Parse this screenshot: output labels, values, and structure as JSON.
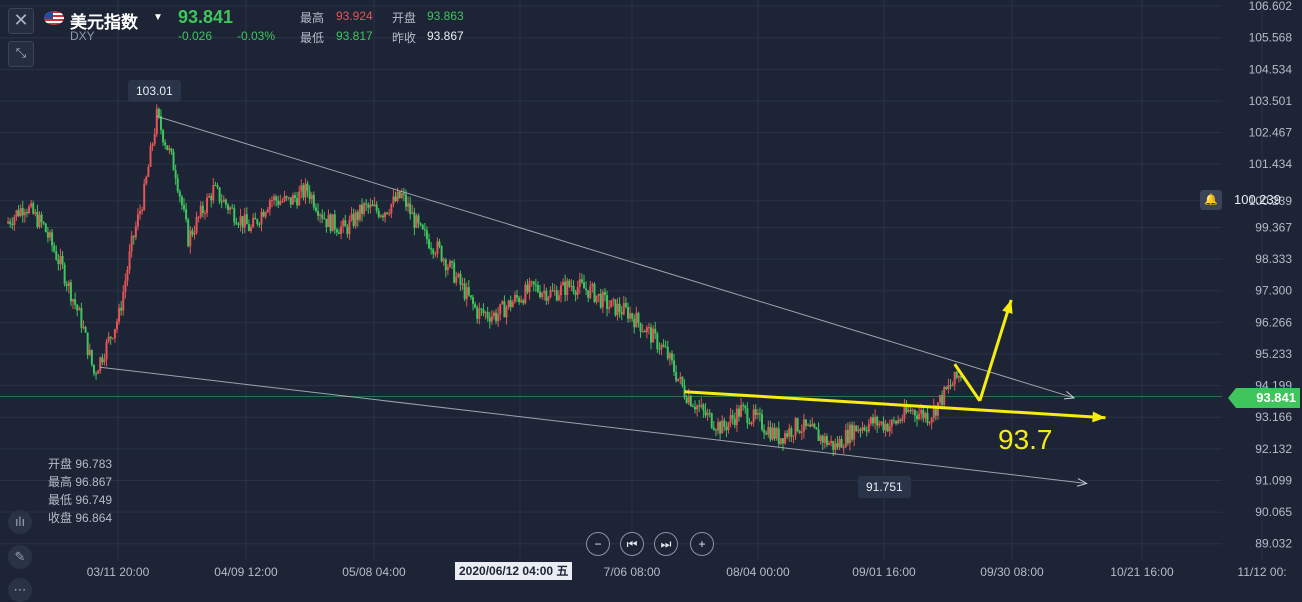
{
  "header": {
    "symbol_name": "美元指数",
    "symbol_code": "DXY",
    "last_price": "93.841",
    "change": "-0.026",
    "change_pct": "-0.03%",
    "high_label": "最高",
    "high": "93.924",
    "open_label": "开盘",
    "open": "93.863",
    "low_label": "最低",
    "low": "93.817",
    "prev_close_label": "昨收",
    "prev_close": "93.867"
  },
  "ohlc_box": {
    "open": "开盘 96.783",
    "high": "最高 96.867",
    "low": "最低 96.749",
    "close": "收盘 96.864"
  },
  "price_tag": "93.841",
  "alert_value": "100.239",
  "callouts": {
    "peak": "103.01",
    "trough": "91.751"
  },
  "annotation": "93.7",
  "crosshair_date": "2020/06/12 04:00 五",
  "colors": {
    "bg": "#1c2435",
    "up": "#e45656",
    "down": "#3ec55c",
    "trend": "#f6ec12",
    "channel": "#c8ccd4"
  },
  "chart_data": {
    "type": "candlestick",
    "symbol": "DXY",
    "y_ticks": [
      "106.602",
      "105.568",
      "104.534",
      "103.501",
      "102.467",
      "101.434",
      "100.239",
      "99.367",
      "98.333",
      "97.300",
      "96.266",
      "95.233",
      "94.199",
      "93.166",
      "92.132",
      "91.099",
      "90.065",
      "89.032"
    ],
    "x_ticks": [
      "03/11 20:00",
      "04/09 12:00",
      "05/08 04:00",
      "06/12 04:00",
      "7/06 08:00",
      "08/04 00:00",
      "09/01 16:00",
      "09/30 08:00",
      "10/21 16:00",
      "11/12 00:"
    ],
    "ylim": [
      88.5,
      106.8
    ],
    "close_path": [
      {
        "x": 0,
        "y": 99.5
      },
      {
        "x": 3,
        "y": 100.1
      },
      {
        "x": 6,
        "y": 99.4
      },
      {
        "x": 9,
        "y": 98.0
      },
      {
        "x": 12,
        "y": 96.3
      },
      {
        "x": 14,
        "y": 94.6
      },
      {
        "x": 16,
        "y": 95.5
      },
      {
        "x": 18,
        "y": 96.5
      },
      {
        "x": 20,
        "y": 98.8
      },
      {
        "x": 22,
        "y": 100.5
      },
      {
        "x": 24,
        "y": 103.0
      },
      {
        "x": 27,
        "y": 101.2
      },
      {
        "x": 29,
        "y": 99.0
      },
      {
        "x": 31,
        "y": 99.8
      },
      {
        "x": 33,
        "y": 100.6
      },
      {
        "x": 36,
        "y": 99.9
      },
      {
        "x": 39,
        "y": 99.3
      },
      {
        "x": 42,
        "y": 100.3
      },
      {
        "x": 45,
        "y": 100.2
      },
      {
        "x": 48,
        "y": 100.6
      },
      {
        "x": 51,
        "y": 99.6
      },
      {
        "x": 54,
        "y": 99.3
      },
      {
        "x": 57,
        "y": 100.0
      },
      {
        "x": 60,
        "y": 99.9
      },
      {
        "x": 63,
        "y": 100.4
      },
      {
        "x": 66,
        "y": 99.2
      },
      {
        "x": 69,
        "y": 98.6
      },
      {
        "x": 72,
        "y": 97.6
      },
      {
        "x": 75,
        "y": 96.6
      },
      {
        "x": 78,
        "y": 96.5
      },
      {
        "x": 81,
        "y": 97.0
      },
      {
        "x": 84,
        "y": 97.4
      },
      {
        "x": 87,
        "y": 97.2
      },
      {
        "x": 90,
        "y": 97.5
      },
      {
        "x": 93,
        "y": 97.3
      },
      {
        "x": 96,
        "y": 96.8
      },
      {
        "x": 99,
        "y": 96.6
      },
      {
        "x": 102,
        "y": 96.0
      },
      {
        "x": 105,
        "y": 95.3
      },
      {
        "x": 108,
        "y": 94.0
      },
      {
        "x": 111,
        "y": 93.3
      },
      {
        "x": 114,
        "y": 92.8
      },
      {
        "x": 117,
        "y": 93.4
      },
      {
        "x": 120,
        "y": 93.0
      },
      {
        "x": 123,
        "y": 92.5
      },
      {
        "x": 126,
        "y": 92.9
      },
      {
        "x": 129,
        "y": 92.6
      },
      {
        "x": 132,
        "y": 92.2
      },
      {
        "x": 135,
        "y": 92.8
      },
      {
        "x": 138,
        "y": 93.0
      },
      {
        "x": 141,
        "y": 92.9
      },
      {
        "x": 144,
        "y": 93.4
      },
      {
        "x": 147,
        "y": 93.2
      },
      {
        "x": 150,
        "y": 94.1
      },
      {
        "x": 152,
        "y": 94.6
      }
    ],
    "trendlines": [
      {
        "from": {
          "x": 24,
          "y": 103.0
        },
        "to": {
          "x": 170,
          "y": 93.8
        }
      },
      {
        "from": {
          "x": 15,
          "y": 94.8
        },
        "to": {
          "x": 172,
          "y": 91.0
        }
      },
      {
        "from": {
          "x": 108,
          "y": 94.0
        },
        "to": {
          "x": 175,
          "y": 93.15
        }
      },
      {
        "from": {
          "x": 151,
          "y": 94.9
        },
        "to": {
          "x": 155,
          "y": 93.7
        }
      },
      {
        "from": {
          "x": 155,
          "y": 93.7
        },
        "to": {
          "x": 160,
          "y": 97.0
        }
      }
    ]
  }
}
